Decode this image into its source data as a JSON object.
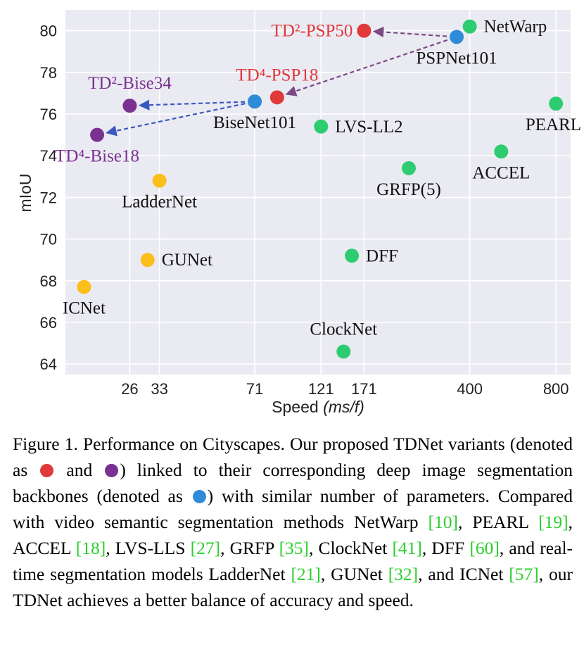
{
  "chart_data": {
    "type": "scatter",
    "xlabel": "Speed",
    "xlabel_unit": "(ms/f)",
    "ylabel": "mIoU",
    "x_scale": "log",
    "ylim": [
      63.5,
      81.0
    ],
    "yticks": [
      64,
      66,
      68,
      70,
      72,
      74,
      76,
      78,
      80
    ],
    "xticks": [
      26,
      33,
      71,
      121,
      171,
      400,
      800
    ],
    "grid": true,
    "colors": {
      "tdnet_psp": "#e0383b",
      "tdnet_bise": "#7a3192",
      "backbone": "#2f8ad8",
      "video": "#2ecc71",
      "realtime": "#fbbf1b",
      "arrow_purple": "#7a4a82",
      "arrow_blue": "#3a58c0"
    },
    "points": [
      {
        "name": "TD²-PSP50",
        "label": "TD²-PSP50",
        "group": "tdnet_psp",
        "x": 171,
        "y": 80.0,
        "label_pos": "left"
      },
      {
        "name": "TD⁴-PSP18",
        "label": "TD⁴-PSP18",
        "group": "tdnet_psp",
        "x": 85,
        "y": 76.8,
        "label_pos": "above"
      },
      {
        "name": "TD²-Bise34",
        "label": "TD²-Bise34",
        "group": "tdnet_bise",
        "x": 26,
        "y": 76.4,
        "label_pos": "above"
      },
      {
        "name": "TD⁴-Bise18",
        "label": "TD⁴-Bise18",
        "group": "tdnet_bise",
        "x": 20,
        "y": 75.0,
        "label_pos": "below"
      },
      {
        "name": "PSPNet101",
        "label": "PSPNet101",
        "group": "backbone",
        "x": 360,
        "y": 79.7,
        "label_pos": "below"
      },
      {
        "name": "BiseNet101",
        "label": "BiseNet101",
        "group": "backbone",
        "x": 71,
        "y": 76.6,
        "label_pos": "below"
      },
      {
        "name": "NetWarp",
        "label": "NetWarp",
        "group": "video",
        "x": 400,
        "y": 80.2,
        "label_pos": "right"
      },
      {
        "name": "PEARL",
        "label": "PEARL",
        "group": "video",
        "x": 800,
        "y": 76.5,
        "label_pos": "below"
      },
      {
        "name": "ACCEL",
        "label": "ACCEL",
        "group": "video",
        "x": 515,
        "y": 74.2,
        "label_pos": "below"
      },
      {
        "name": "LVS-LL2",
        "label": "LVS-LL2",
        "group": "video",
        "x": 121,
        "y": 75.4,
        "label_pos": "right"
      },
      {
        "name": "GRFP(5)",
        "label": "GRFP(5)",
        "group": "video",
        "x": 245,
        "y": 73.4,
        "label_pos": "below"
      },
      {
        "name": "DFF",
        "label": "DFF",
        "group": "video",
        "x": 155,
        "y": 69.2,
        "label_pos": "right"
      },
      {
        "name": "ClockNet",
        "label": "ClockNet",
        "group": "video",
        "x": 145,
        "y": 64.6,
        "label_pos": "above"
      },
      {
        "name": "LadderNet",
        "label": "LadderNet",
        "group": "realtime",
        "x": 33,
        "y": 72.8,
        "label_pos": "below"
      },
      {
        "name": "GUNet",
        "label": "GUNet",
        "group": "realtime",
        "x": 30,
        "y": 69.0,
        "label_pos": "right"
      },
      {
        "name": "ICNet",
        "label": "ICNet",
        "group": "realtime",
        "x": 18,
        "y": 67.7,
        "label_pos": "below"
      }
    ],
    "arrows": [
      {
        "from": "PSPNet101",
        "to": "TD²-PSP50",
        "color": "arrow_purple"
      },
      {
        "from": "PSPNet101",
        "to": "TD⁴-PSP18",
        "color": "arrow_purple"
      },
      {
        "from": "BiseNet101",
        "to": "TD²-Bise34",
        "color": "arrow_blue"
      },
      {
        "from": "BiseNet101",
        "to": "TD⁴-Bise18",
        "color": "arrow_blue"
      }
    ]
  },
  "caption": {
    "intro": "Figure 1.  Performance on Cityscapes. Our proposed TDNet variants (denoted as ",
    "and": " and ",
    "linked": ") linked to their corresponding deep image segmentation backbones (denoted as ",
    "compared": ") with similar number of parameters.  Compared with video semantic segmentation methods NetWarp ",
    "ref_netwarp": "[10]",
    "pearl": ", PEARL ",
    "ref_pearl": "[19]",
    "accel": ", ACCEL ",
    "ref_accel": "[18]",
    "lvs": ", LVS-LLS ",
    "ref_lvs": "[27]",
    "grfp": ", GRFP ",
    "ref_grfp": "[35]",
    "clocknet": ", ClockNet ",
    "ref_clocknet": "[41]",
    "dff": ", DFF ",
    "ref_dff": "[60]",
    "ladder": ", and real-time segmentation models LadderNet ",
    "ref_ladder": "[21]",
    "gunet": ", GUNet ",
    "ref_gunet": "[32]",
    "icnet": ", and ICNet ",
    "ref_icnet": "[57]",
    "tail": ", our TDNet achieves a better balance of accuracy and speed."
  }
}
